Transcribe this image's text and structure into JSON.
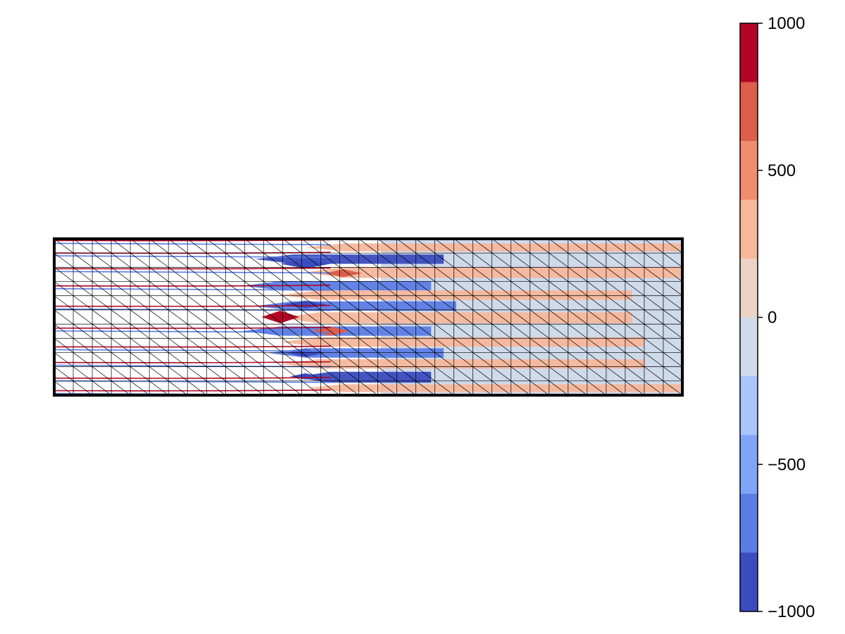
{
  "chart_data": {
    "type": "heatmap",
    "title": "",
    "xlabel": "",
    "ylabel": "",
    "mesh": {
      "columns": 33,
      "rows": 11,
      "cell_diagonals": true,
      "grid": true
    },
    "field_bands": [
      {
        "x_from": 0.0,
        "x_to": 0.36,
        "y": 0.02,
        "value": 0
      },
      {
        "x_from": 0.0,
        "x_to": 0.36,
        "y": 0.1,
        "value": 0
      },
      {
        "x_from": 0.0,
        "x_to": 0.36,
        "y": 0.2,
        "value": 0
      },
      {
        "x_from": 0.0,
        "x_to": 0.36,
        "y": 0.31,
        "value": 0
      },
      {
        "x_from": 0.0,
        "x_to": 0.36,
        "y": 0.44,
        "value": 0
      },
      {
        "x_from": 0.0,
        "x_to": 0.36,
        "y": 0.58,
        "value": 0
      },
      {
        "x_from": 0.0,
        "x_to": 0.36,
        "y": 0.7,
        "value": 0
      },
      {
        "x_from": 0.0,
        "x_to": 0.36,
        "y": 0.8,
        "value": 0
      },
      {
        "x_from": 0.0,
        "x_to": 0.36,
        "y": 0.9,
        "value": 0
      },
      {
        "x_from": 0.0,
        "x_to": 0.36,
        "y": 0.98,
        "value": 0
      }
    ],
    "colorbar": {
      "vmin": -1000,
      "vmax": 1000,
      "ticks": [
        -1000,
        -500,
        0,
        500,
        1000
      ],
      "tick_labels": [
        "−1000",
        "−500",
        "0",
        "500",
        "1000"
      ],
      "levels": [
        -1000,
        -800,
        -600,
        -400,
        -200,
        0,
        200,
        400,
        600,
        800,
        1000
      ],
      "colors": [
        "#3a4cc0",
        "#5b7de6",
        "#80a4f8",
        "#a9c5fc",
        "#cfdaeb",
        "#ecd3c5",
        "#f7b79b",
        "#f18c6d",
        "#dc5e4b",
        "#b40426"
      ],
      "colormap": "coolwarm"
    }
  }
}
